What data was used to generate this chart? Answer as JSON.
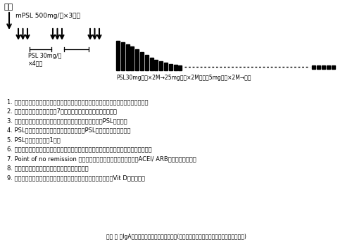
{
  "title": "扁摘",
  "arrow_label": "mPSL 500mg/日×3日間",
  "psl_label": "PSL 30mg/日\n×4日間",
  "psl_bottom_label": "PSL30mg隔日×2M→25mg隔日×2M・・・5mg隔日×2M→終了",
  "notes": [
    "1. 扁摘はパルスの後でも良く、扁摘とパルスはどちらが先でも治療効果に差異はない。",
    "2. 扁摘からパルス開始までは7日間以上あけることを原則とする。",
    "3. パルス施行中に寛解になった例は原則としてパルス後のPSLは不要。",
    "4. PSL減漸中に寛解になった場合はその後のPSLの急速な減量が可能。",
    "5. PSL投与期間は最長1年。",
    "6. 蛋白尿の程度、年令、血管病変などを考慮して抗血小板薬をステロイド投与中は併用。",
    "7. Point of no remission を過ぎていることが推定される場合はACEI/ ARBを最初から併用。",
    "8. ステロイド投与中は抗潰瘍薬を予防的に併用。",
    "9. 閉経後の女性にはステロイド投与中ビスフォスフォネート薬かVit D薬を併用。"
  ],
  "citation": "堀田 修 「IgA腎症の病態と扁摘パルス療法」(メディカルサイエンス・インターナショナル)",
  "bg_color": "#ffffff",
  "text_color": "#000000"
}
